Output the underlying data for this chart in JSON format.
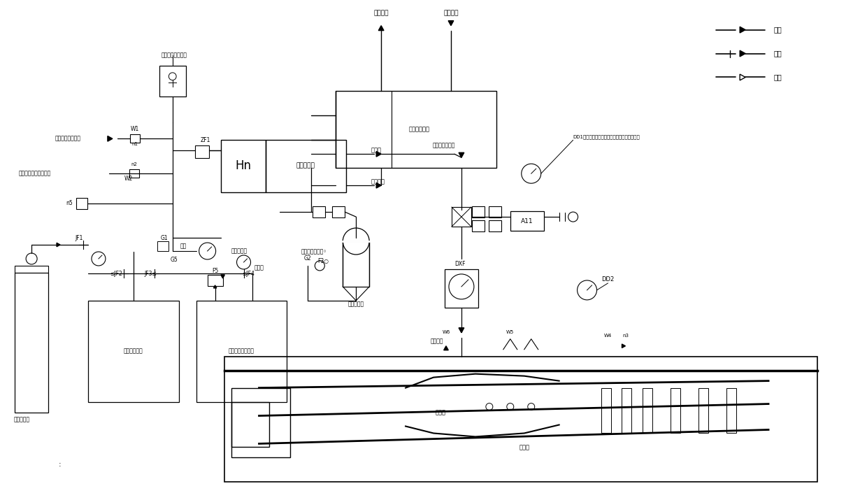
{
  "bg_color": "#ffffff",
  "fig_width": 12.4,
  "fig_height": 7.15,
  "labels": {
    "hua_you_chu_kou": "滑油出口",
    "hua_you_ru_kou": "滑油入口",
    "ran_hua_you": "燃滑油换热器",
    "fei_xing_qi_ran_you_ru": "飞行器上燃油输入",
    "fei_xing_qi_pai_qi": "飞行器上燃油排气接口",
    "ran_you_dian_ci_fa": "燃油进油路电磁阀",
    "gong_you_tiao_jie_qi": "供油调节器",
    "zhu_you_lu": "主油路",
    "fu_zhu_you_lu": "辅助油路",
    "hn": "Hn",
    "zf1": "ZF1",
    "w1": "W1",
    "n1": "n1",
    "n2": "n2",
    "w2": "W2",
    "n5": "n5",
    "g1": "G1",
    "g5": "G5",
    "ding_zhen": "顶针",
    "ya_li_chuan_gan_qi": "压力传感器",
    "qi_dong_ran_liao_you_xiang": "起动燃料油筱",
    "qi_dong_ran_liao_zeng_ya": "起动燃料增压设备",
    "gao_chun_dan_qi_ping": "高纯氮气瓶",
    "jf1": "JF1",
    "jf2": "⪯JF2",
    "jf3": "JF3⪯",
    "jf4": "⪯JF4",
    "f5": "F5",
    "ya_li_biao": "压力表",
    "qi_dong_pai_qi": "起动燃料排气口◦",
    "g2": "G2",
    "f3": "F3○",
    "wen_du_bu_chang_qi": "温度补唇器",
    "yi_dong_you_lu_dian_ci_fa": "易动油路电磁阀",
    "dd1_label": "DD1（起动油路塡充过程中起动燃料压力测点）",
    "dd2": "DD2",
    "dxf": "DXF",
    "a11": "A11",
    "w6": "W6",
    "w5": "W5",
    "w4": "W4",
    "n3": "n3",
    "wai_tao_yin_qi": "外涉引气",
    "yu_ran_shi": "预燃室",
    "ran_shao_shi": "燃烧室",
    "legend_ran_you": "燃油",
    "legend_hua_you": "滑油",
    "legend_kong_qi": "空气"
  }
}
